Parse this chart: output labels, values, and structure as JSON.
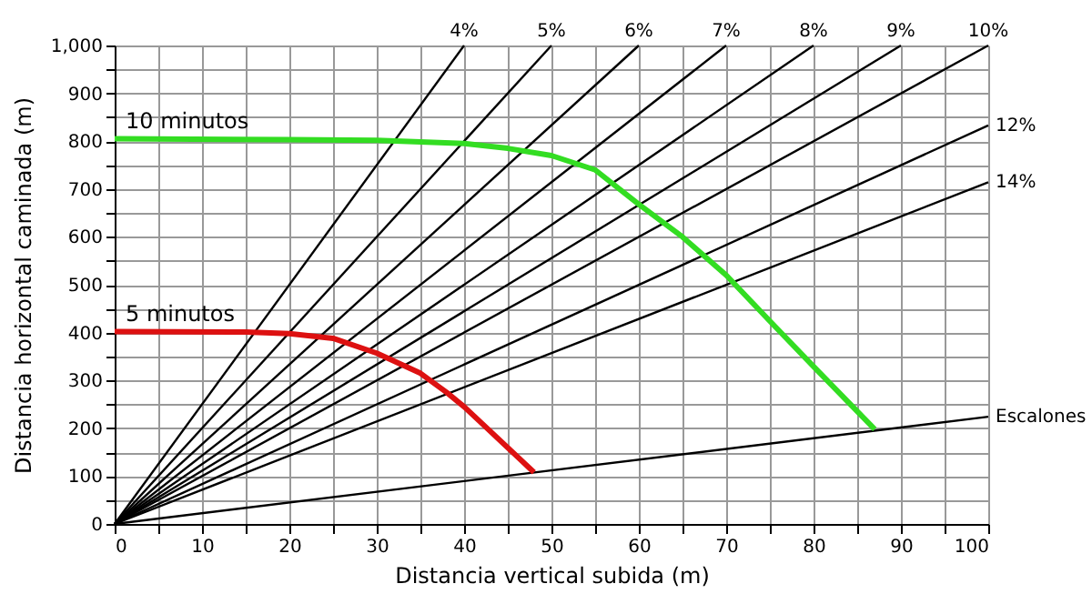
{
  "chart_data": {
    "type": "line",
    "xlabel": "Distancia vertical subida (m)",
    "ylabel": "Distancia horizontal caminada (m)",
    "xlim": [
      0,
      100
    ],
    "ylim": [
      0,
      1000
    ],
    "xticks": [
      0,
      {
        "value": 5,
        "label": null
      },
      10,
      {
        "value": 15,
        "label": null
      },
      20,
      {
        "value": 25,
        "label": null
      },
      30,
      {
        "value": 35,
        "label": null
      },
      40,
      {
        "value": 45,
        "label": null
      },
      50,
      {
        "value": 55,
        "label": null
      },
      60,
      {
        "value": 65,
        "label": null
      },
      70,
      {
        "value": 75,
        "label": null
      },
      80,
      {
        "value": 85,
        "label": null
      },
      90,
      {
        "value": 95,
        "label": null
      },
      100
    ],
    "yticks": [
      0,
      {
        "value": 50,
        "label": null
      },
      100,
      {
        "value": 150,
        "label": null
      },
      200,
      {
        "value": 250,
        "label": null
      },
      300,
      {
        "value": 350,
        "label": null
      },
      400,
      {
        "value": 450,
        "label": null
      },
      500,
      {
        "value": 550,
        "label": null
      },
      600,
      {
        "value": 650,
        "label": null
      },
      700,
      {
        "value": 750,
        "label": null
      },
      800,
      {
        "value": 850,
        "label": null
      },
      900,
      {
        "value": 950,
        "label": null
      },
      {
        "value": 1000,
        "label": "1,000"
      }
    ],
    "grid": true,
    "legend": false,
    "marker": "none",
    "line_style": "solid",
    "series": [
      {
        "name": "4%",
        "color": "#000000",
        "x": [
          0,
          40
        ],
        "values": [
          0,
          1000
        ]
      },
      {
        "name": "5%",
        "color": "#000000",
        "x": [
          0,
          50
        ],
        "values": [
          0,
          1000
        ]
      },
      {
        "name": "6%",
        "color": "#000000",
        "x": [
          0,
          60
        ],
        "values": [
          0,
          1000
        ]
      },
      {
        "name": "7%",
        "color": "#000000",
        "x": [
          0,
          70
        ],
        "values": [
          0,
          1000
        ]
      },
      {
        "name": "8%",
        "color": "#000000",
        "x": [
          0,
          80
        ],
        "values": [
          0,
          1000
        ]
      },
      {
        "name": "9%",
        "color": "#000000",
        "x": [
          0,
          90
        ],
        "values": [
          0,
          1000
        ]
      },
      {
        "name": "10%",
        "color": "#000000",
        "x": [
          0,
          100
        ],
        "values": [
          0,
          1000
        ]
      },
      {
        "name": "12%",
        "color": "#000000",
        "x": [
          0,
          100
        ],
        "values": [
          0,
          833
        ]
      },
      {
        "name": "14%",
        "color": "#000000",
        "x": [
          0,
          100
        ],
        "values": [
          0,
          714
        ]
      },
      {
        "name": "Escalones",
        "color": "#000000",
        "x": [
          0,
          100
        ],
        "values": [
          0,
          224
        ]
      },
      {
        "name": "10 minutos",
        "color": "#33dd22",
        "x": [
          0,
          20,
          30,
          40,
          45,
          50,
          55,
          60,
          65,
          70,
          75,
          80,
          87
        ],
        "values": [
          805,
          803,
          802,
          795,
          785,
          770,
          740,
          668,
          600,
          520,
          424,
          329,
          198
        ]
      },
      {
        "name": "5 minutos",
        "color": "#dd1111",
        "x": [
          0,
          15,
          20,
          25,
          30,
          35,
          38,
          40,
          48
        ],
        "values": [
          402,
          401,
          398,
          388,
          357,
          315,
          275,
          245,
          108
        ]
      }
    ]
  }
}
